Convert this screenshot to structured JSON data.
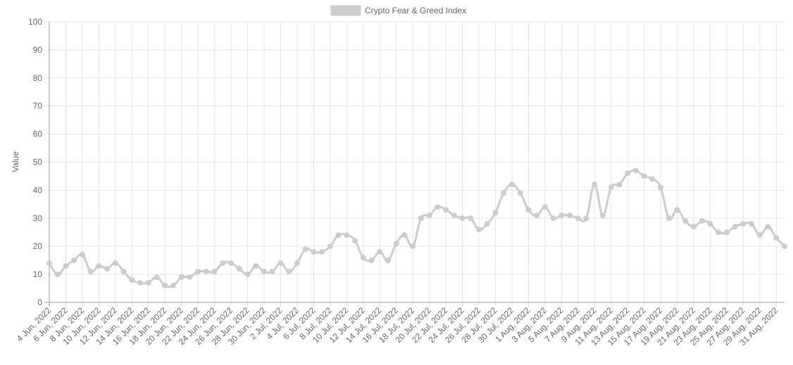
{
  "chart_data": {
    "type": "line",
    "legend": {
      "label": "Crypto Fear & Greed Index",
      "position": "top-center"
    },
    "ylabel": "Value",
    "xlabel": "",
    "ylim": [
      0,
      100
    ],
    "y_ticks": [
      0,
      10,
      20,
      30,
      40,
      50,
      60,
      70,
      80,
      90,
      100
    ],
    "grid": true,
    "line_color": "#cccccc",
    "grid_color": "#e5e5e5",
    "axis_color": "#999999",
    "x": [
      "4 Jun, 2022",
      "5 Jun, 2022",
      "6 Jun, 2022",
      "7 Jun, 2022",
      "8 Jun, 2022",
      "9 Jun, 2022",
      "10 Jun, 2022",
      "11 Jun, 2022",
      "12 Jun, 2022",
      "13 Jun, 2022",
      "14 Jun, 2022",
      "15 Jun, 2022",
      "16 Jun, 2022",
      "17 Jun, 2022",
      "18 Jun, 2022",
      "19 Jun, 2022",
      "20 Jun, 2022",
      "21 Jun, 2022",
      "22 Jun, 2022",
      "23 Jun, 2022",
      "24 Jun, 2022",
      "25 Jun, 2022",
      "26 Jun, 2022",
      "27 Jun, 2022",
      "28 Jun, 2022",
      "29 Jun, 2022",
      "30 Jun, 2022",
      "1 Jul, 2022",
      "2 Jul, 2022",
      "3 Jul, 2022",
      "4 Jul, 2022",
      "5 Jul, 2022",
      "6 Jul, 2022",
      "7 Jul, 2022",
      "8 Jul, 2022",
      "9 Jul, 2022",
      "10 Jul, 2022",
      "11 Jul, 2022",
      "12 Jul, 2022",
      "13 Jul, 2022",
      "14 Jul, 2022",
      "15 Jul, 2022",
      "16 Jul, 2022",
      "17 Jul, 2022",
      "18 Jul, 2022",
      "19 Jul, 2022",
      "20 Jul, 2022",
      "21 Jul, 2022",
      "22 Jul, 2022",
      "23 Jul, 2022",
      "24 Jul, 2022",
      "25 Jul, 2022",
      "26 Jul, 2022",
      "27 Jul, 2022",
      "28 Jul, 2022",
      "29 Jul, 2022",
      "30 Jul, 2022",
      "31 Jul, 2022",
      "1 Aug, 2022",
      "2 Aug, 2022",
      "3 Aug, 2022",
      "4 Aug, 2022",
      "5 Aug, 2022",
      "6 Aug, 2022",
      "7 Aug, 2022",
      "8 Aug, 2022",
      "9 Aug, 2022",
      "10 Aug, 2022",
      "11 Aug, 2022",
      "12 Aug, 2022",
      "13 Aug, 2022",
      "14 Aug, 2022",
      "15 Aug, 2022",
      "16 Aug, 2022",
      "17 Aug, 2022",
      "18 Aug, 2022",
      "19 Aug, 2022",
      "20 Aug, 2022",
      "21 Aug, 2022",
      "22 Aug, 2022",
      "23 Aug, 2022",
      "24 Aug, 2022",
      "25 Aug, 2022",
      "26 Aug, 2022",
      "27 Aug, 2022",
      "28 Aug, 2022",
      "29 Aug, 2022",
      "30 Aug, 2022",
      "31 Aug, 2022",
      "1 Sep, 2022"
    ],
    "x_tick_labels": [
      "4 Jun, 2022",
      "6 Jun, 2022",
      "8 Jun, 2022",
      "10 Jun, 2022",
      "12 Jun, 2022",
      "14 Jun, 2022",
      "16 Jun, 2022",
      "18 Jun, 2022",
      "20 Jun, 2022",
      "22 Jun, 2022",
      "24 Jun, 2022",
      "26 Jun, 2022",
      "28 Jun, 2022",
      "30 Jun, 2022",
      "2 Jul, 2022",
      "4 Jul, 2022",
      "6 Jul, 2022",
      "8 Jul, 2022",
      "10 Jul, 2022",
      "12 Jul, 2022",
      "14 Jul, 2022",
      "16 Jul, 2022",
      "18 Jul, 2022",
      "20 Jul, 2022",
      "22 Jul, 2022",
      "24 Jul, 2022",
      "26 Jul, 2022",
      "28 Jul, 2022",
      "30 Jul, 2022",
      "1 Aug, 2022",
      "3 Aug, 2022",
      "5 Aug, 2022",
      "7 Aug, 2022",
      "9 Aug, 2022",
      "11 Aug, 2022",
      "13 Aug, 2022",
      "15 Aug, 2022",
      "17 Aug, 2022",
      "19 Aug, 2022",
      "21 Aug, 2022",
      "23 Aug, 2022",
      "25 Aug, 2022",
      "27 Aug, 2022",
      "29 Aug, 2022",
      "31 Aug, 2022"
    ],
    "series": [
      {
        "name": "Crypto Fear & Greed Index",
        "values": [
          14,
          10,
          13,
          15,
          17,
          11,
          13,
          12,
          14,
          11,
          8,
          7,
          7,
          9,
          6,
          6,
          9,
          9,
          11,
          11,
          11,
          14,
          14,
          12,
          10,
          13,
          11,
          11,
          14,
          11,
          14,
          19,
          18,
          18,
          20,
          24,
          24,
          22,
          16,
          15,
          18,
          15,
          21,
          24,
          20,
          30,
          31,
          34,
          33,
          31,
          30,
          30,
          26,
          28,
          32,
          39,
          42,
          39,
          33,
          31,
          34,
          30,
          31,
          31,
          30,
          30,
          42,
          31,
          41,
          42,
          46,
          47,
          45,
          44,
          41,
          30,
          33,
          29,
          27,
          29,
          28,
          25,
          25,
          27,
          28,
          28,
          24,
          27,
          23,
          20
        ]
      }
    ]
  }
}
